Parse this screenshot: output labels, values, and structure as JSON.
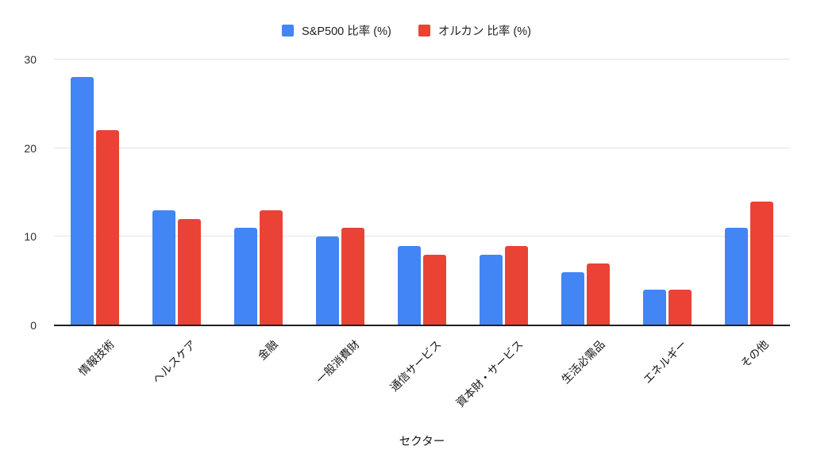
{
  "chart_data": {
    "type": "bar",
    "title": "",
    "categories": [
      "情報技術",
      "ヘルスケア",
      "金融",
      "一般消費財",
      "通信サービス",
      "資本財・サービス",
      "生活必需品",
      "エネルギー",
      "その他"
    ],
    "series": [
      {
        "name": "S&P500 比率 (%)",
        "color": "#4285F4",
        "values": [
          28,
          13,
          11,
          10,
          9,
          8,
          6,
          4,
          11
        ]
      },
      {
        "name": "オルカン 比率 (%)",
        "color": "#EA4335",
        "values": [
          22,
          12,
          13,
          11,
          8,
          9,
          7,
          4,
          14
        ]
      }
    ],
    "xlabel": "セクター",
    "ylabel": "",
    "ylim": [
      0,
      30
    ],
    "yticks": [
      0,
      10,
      20,
      30
    ],
    "grid": true,
    "legend_position": "top"
  },
  "colors": {
    "series_blue": "#4285F4",
    "series_red": "#EA4335",
    "gridline": "#e3e3e3",
    "axis_line": "#212121",
    "text": "#202124",
    "background": "#ffffff"
  }
}
